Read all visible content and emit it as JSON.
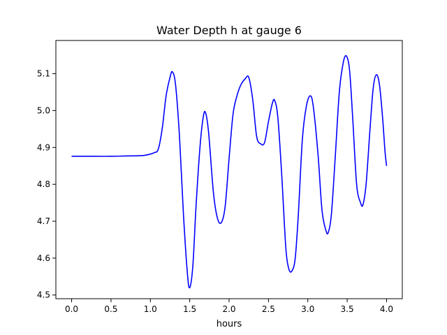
{
  "chart_data": {
    "type": "line",
    "title": "Water Depth h at gauge 6",
    "xlabel": "hours",
    "ylabel": "",
    "xlim": [
      -0.2,
      4.2
    ],
    "ylim": [
      4.49,
      5.19
    ],
    "xticks": [
      0.0,
      0.5,
      1.0,
      1.5,
      2.0,
      2.5,
      3.0,
      3.5,
      4.0
    ],
    "xtick_labels": [
      "0.0",
      "0.5",
      "1.0",
      "1.5",
      "2.0",
      "2.5",
      "3.0",
      "3.5",
      "4.0"
    ],
    "yticks": [
      4.5,
      4.6,
      4.7,
      4.8,
      4.9,
      5.0,
      5.1
    ],
    "ytick_labels": [
      "4.5",
      "4.6",
      "4.7",
      "4.8",
      "4.9",
      "5.0",
      "5.1"
    ],
    "grid": false,
    "legend": "none",
    "series": [
      {
        "color": "#0000ff",
        "points": [
          [
            0.0,
            4.876
          ],
          [
            0.3,
            4.876
          ],
          [
            0.5,
            4.876
          ],
          [
            0.7,
            4.877
          ],
          [
            0.9,
            4.878
          ],
          [
            1.0,
            4.882
          ],
          [
            1.05,
            4.886
          ],
          [
            1.1,
            4.895
          ],
          [
            1.15,
            4.95
          ],
          [
            1.2,
            5.04
          ],
          [
            1.25,
            5.09
          ],
          [
            1.28,
            5.105
          ],
          [
            1.32,
            5.07
          ],
          [
            1.37,
            4.93
          ],
          [
            1.42,
            4.72
          ],
          [
            1.47,
            4.56
          ],
          [
            1.5,
            4.52
          ],
          [
            1.54,
            4.58
          ],
          [
            1.58,
            4.74
          ],
          [
            1.63,
            4.9
          ],
          [
            1.67,
            4.98
          ],
          [
            1.7,
            4.995
          ],
          [
            1.74,
            4.94
          ],
          [
            1.8,
            4.78
          ],
          [
            1.85,
            4.71
          ],
          [
            1.9,
            4.696
          ],
          [
            1.95,
            4.74
          ],
          [
            2.0,
            4.87
          ],
          [
            2.05,
            4.99
          ],
          [
            2.1,
            5.04
          ],
          [
            2.15,
            5.07
          ],
          [
            2.2,
            5.085
          ],
          [
            2.25,
            5.09
          ],
          [
            2.3,
            5.03
          ],
          [
            2.35,
            4.93
          ],
          [
            2.4,
            4.91
          ],
          [
            2.45,
            4.913
          ],
          [
            2.5,
            4.97
          ],
          [
            2.55,
            5.02
          ],
          [
            2.58,
            5.027
          ],
          [
            2.62,
            4.98
          ],
          [
            2.67,
            4.82
          ],
          [
            2.72,
            4.63
          ],
          [
            2.76,
            4.57
          ],
          [
            2.8,
            4.566
          ],
          [
            2.84,
            4.6
          ],
          [
            2.88,
            4.72
          ],
          [
            2.93,
            4.92
          ],
          [
            2.98,
            5.01
          ],
          [
            3.03,
            5.04
          ],
          [
            3.07,
            5.01
          ],
          [
            3.13,
            4.88
          ],
          [
            3.18,
            4.73
          ],
          [
            3.23,
            4.675
          ],
          [
            3.26,
            4.67
          ],
          [
            3.3,
            4.72
          ],
          [
            3.35,
            4.88
          ],
          [
            3.4,
            5.05
          ],
          [
            3.45,
            5.13
          ],
          [
            3.49,
            5.148
          ],
          [
            3.53,
            5.11
          ],
          [
            3.57,
            4.98
          ],
          [
            3.62,
            4.8
          ],
          [
            3.67,
            4.75
          ],
          [
            3.7,
            4.745
          ],
          [
            3.74,
            4.8
          ],
          [
            3.79,
            4.95
          ],
          [
            3.83,
            5.06
          ],
          [
            3.87,
            5.097
          ],
          [
            3.91,
            5.07
          ],
          [
            3.95,
            4.98
          ],
          [
            3.98,
            4.89
          ],
          [
            4.0,
            4.85
          ]
        ]
      }
    ]
  }
}
